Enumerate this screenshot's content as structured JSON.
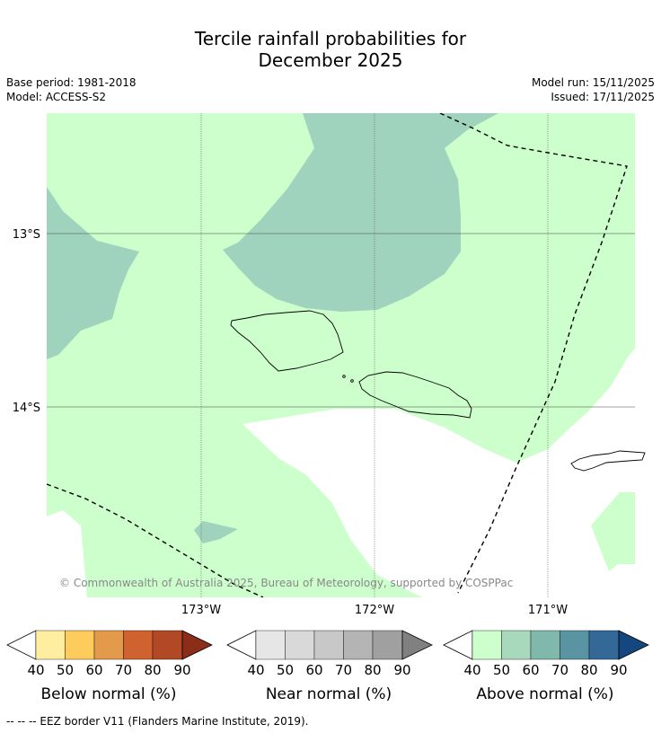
{
  "title_line1": "Tercile rainfall probabilities for",
  "title_line2": "December 2025",
  "meta": {
    "base_period": "Base period: 1981-2018",
    "model": "Model: ACCESS-S2",
    "model_run": "Model run: 15/11/2025",
    "issued": "Issued: 17/11/2025"
  },
  "map": {
    "lat_labels": [
      "13°S",
      "14°S"
    ],
    "lon_labels": [
      "173°W",
      "172°W",
      "171°W"
    ],
    "copyright": "© Commonwealth of Australia 2025, Bureau of Meteorology, supported by COSPPac",
    "colors": {
      "above_50": "#ccffcc",
      "above_60": "#9fd3bd",
      "land_outline": "#000000",
      "eez": "#000000"
    }
  },
  "colorbars": [
    {
      "label": "Below normal (%)",
      "ticks": [
        "40",
        "50",
        "60",
        "70",
        "80",
        "90"
      ],
      "colors": [
        "#ffeda0",
        "#fecc5c",
        "#e39a4b",
        "#d0622f",
        "#b24926",
        "#8c2d1a"
      ]
    },
    {
      "label": "Near normal (%)",
      "ticks": [
        "40",
        "50",
        "60",
        "70",
        "80",
        "90"
      ],
      "colors": [
        "#e6e6e6",
        "#d9d9d9",
        "#c8c8c8",
        "#b4b4b4",
        "#a0a0a0",
        "#808080"
      ]
    },
    {
      "label": "Above normal (%)",
      "ticks": [
        "40",
        "50",
        "60",
        "70",
        "80",
        "90"
      ],
      "colors": [
        "#ccffcc",
        "#a8d9bc",
        "#80b8ac",
        "#5a93a2",
        "#346897",
        "#14477f"
      ]
    }
  ],
  "footnote": "--  --  -- EEZ border V11 (Flanders Marine Institute, 2019)."
}
